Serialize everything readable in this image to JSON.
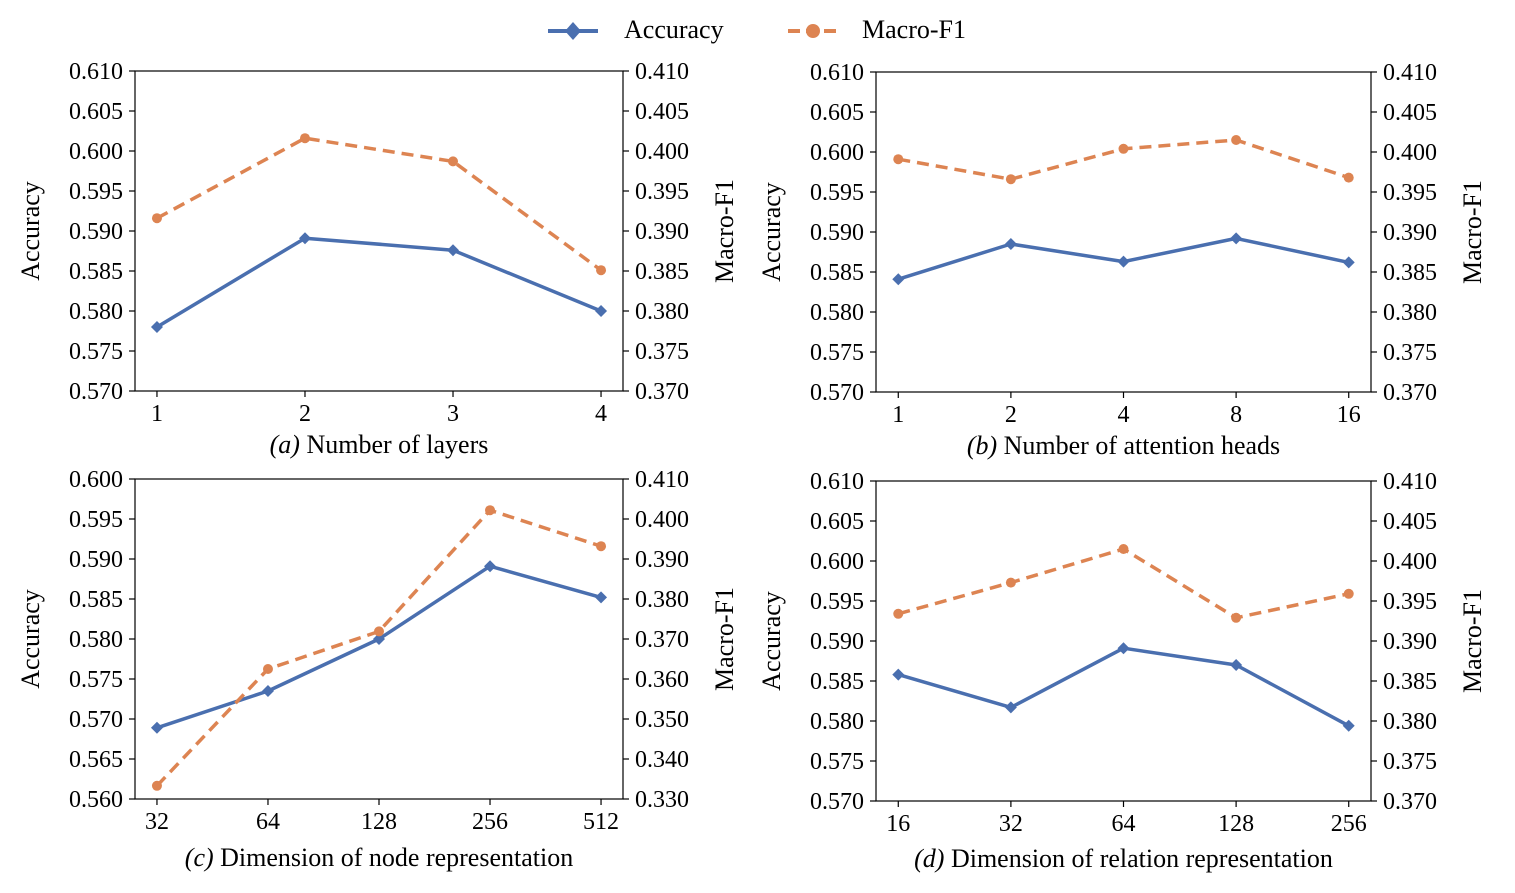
{
  "legend": {
    "accuracy_label": "Accuracy",
    "macro_label": "Macro-F1"
  },
  "colors": {
    "accuracy": "#4a6faf",
    "macro": "#dd8452"
  },
  "chart_data": [
    {
      "type": "line",
      "caption_prefix": "(a)",
      "caption": "Number of layers",
      "categories": [
        "1",
        "2",
        "3",
        "4"
      ],
      "ylabel": "Accuracy",
      "y2label": "Macro-F1",
      "ylim": [
        0.57,
        0.61
      ],
      "yticks": [
        "0.570",
        "0.575",
        "0.580",
        "0.585",
        "0.590",
        "0.595",
        "0.600",
        "0.605",
        "0.610"
      ],
      "y2lim": [
        0.37,
        0.41
      ],
      "y2ticks": [
        "0.370",
        "0.375",
        "0.380",
        "0.385",
        "0.390",
        "0.395",
        "0.400",
        "0.405",
        "0.410"
      ],
      "series": [
        {
          "name": "Accuracy",
          "axis": "left",
          "marker": "diamond",
          "values": [
            0.578,
            0.5891,
            0.5876,
            0.58
          ]
        },
        {
          "name": "Macro-F1",
          "axis": "right",
          "marker": "circle",
          "values": [
            0.3916,
            0.4016,
            0.3987,
            0.3851
          ]
        }
      ]
    },
    {
      "type": "line",
      "caption_prefix": "(b)",
      "caption": "Number of attention heads",
      "categories": [
        "1",
        "2",
        "4",
        "8",
        "16"
      ],
      "ylabel": "Accuracy",
      "y2label": "Macro-F1",
      "ylim": [
        0.57,
        0.61
      ],
      "yticks": [
        "0.570",
        "0.575",
        "0.580",
        "0.585",
        "0.590",
        "0.595",
        "0.600",
        "0.605",
        "0.610"
      ],
      "y2lim": [
        0.37,
        0.41
      ],
      "y2ticks": [
        "0.370",
        "0.375",
        "0.380",
        "0.385",
        "0.390",
        "0.395",
        "0.400",
        "0.405",
        "0.410"
      ],
      "series": [
        {
          "name": "Accuracy",
          "axis": "left",
          "marker": "diamond",
          "values": [
            0.5841,
            0.5885,
            0.5863,
            0.5892,
            0.5862
          ]
        },
        {
          "name": "Macro-F1",
          "axis": "right",
          "marker": "circle",
          "values": [
            0.3991,
            0.3966,
            0.4004,
            0.4015,
            0.3968
          ]
        }
      ]
    },
    {
      "type": "line",
      "caption_prefix": "(c)",
      "caption": "Dimension of node representation",
      "categories": [
        "32",
        "64",
        "128",
        "256",
        "512"
      ],
      "ylabel": "Accuracy",
      "y2label": "Macro-F1",
      "ylim": [
        0.56,
        0.6
      ],
      "yticks": [
        "0.560",
        "0.565",
        "0.570",
        "0.575",
        "0.580",
        "0.585",
        "0.590",
        "0.595",
        "0.600"
      ],
      "y2lim": [
        0.33,
        0.41
      ],
      "y2ticks": [
        "0.330",
        "0.340",
        "0.350",
        "0.360",
        "0.370",
        "0.380",
        "0.390",
        "0.400",
        "0.410"
      ],
      "series": [
        {
          "name": "Accuracy",
          "axis": "left",
          "marker": "diamond",
          "values": [
            0.5689,
            0.5735,
            0.58,
            0.5891,
            0.5852
          ]
        },
        {
          "name": "Macro-F1",
          "axis": "right",
          "marker": "circle",
          "values": [
            0.3333,
            0.3625,
            0.3719,
            0.4022,
            0.3932
          ]
        }
      ]
    },
    {
      "type": "line",
      "caption_prefix": "(d)",
      "caption": "Dimension of relation representation",
      "categories": [
        "16",
        "32",
        "64",
        "128",
        "256"
      ],
      "ylabel": "Accuracy",
      "y2label": "Macro-F1",
      "ylim": [
        0.57,
        0.61
      ],
      "yticks": [
        "0.570",
        "0.575",
        "0.580",
        "0.585",
        "0.590",
        "0.595",
        "0.600",
        "0.605",
        "0.610"
      ],
      "y2lim": [
        0.37,
        0.41
      ],
      "y2ticks": [
        "0.370",
        "0.375",
        "0.380",
        "0.385",
        "0.390",
        "0.395",
        "0.400",
        "0.405",
        "0.410"
      ],
      "series": [
        {
          "name": "Accuracy",
          "axis": "left",
          "marker": "diamond",
          "values": [
            0.5858,
            0.5817,
            0.5891,
            0.587,
            0.5794
          ]
        },
        {
          "name": "Macro-F1",
          "axis": "right",
          "marker": "circle",
          "values": [
            0.3934,
            0.3973,
            0.4015,
            0.3929,
            0.3959
          ]
        }
      ]
    }
  ]
}
